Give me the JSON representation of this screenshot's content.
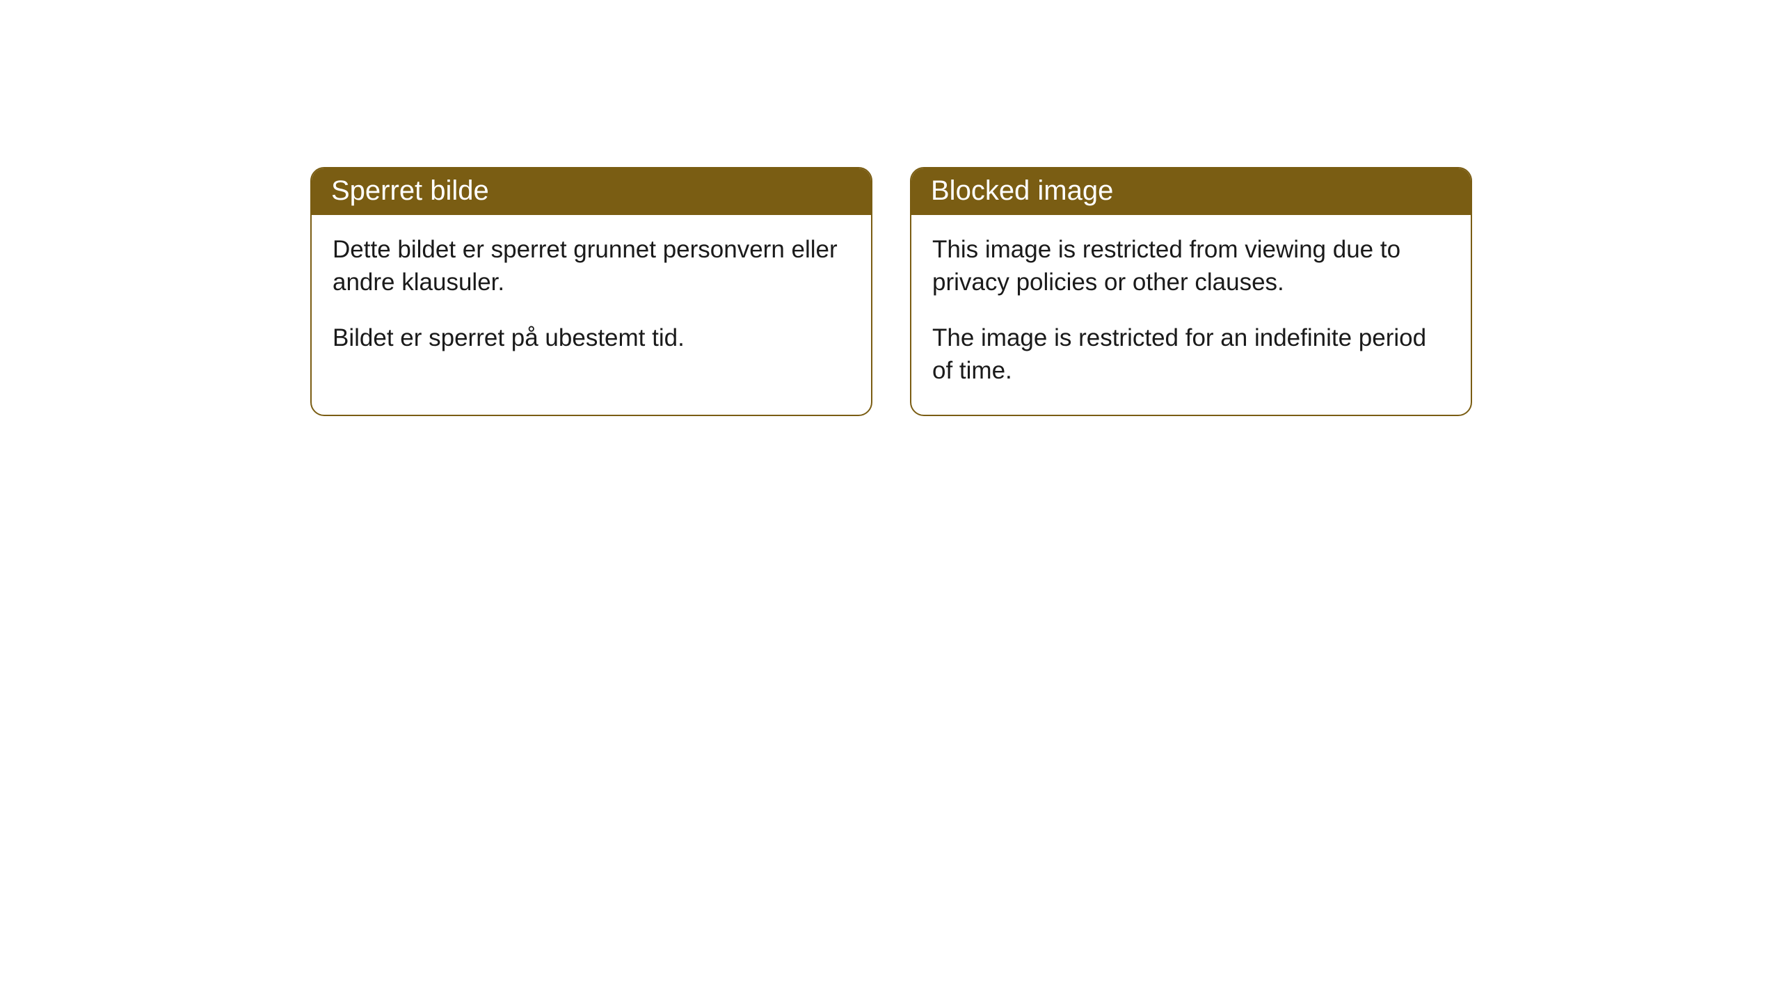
{
  "cards": [
    {
      "title": "Sperret bilde",
      "paragraph1": "Dette bildet er sperret grunnet personvern eller andre klausuler.",
      "paragraph2": "Bildet er sperret på ubestemt tid."
    },
    {
      "title": "Blocked image",
      "paragraph1": "This image is restricted from viewing due to privacy policies or other clauses.",
      "paragraph2": "The image is restricted for an indefinite period of time."
    }
  ],
  "styling": {
    "header_background": "#7a5d13",
    "header_text_color": "#ffffff",
    "body_background": "#ffffff",
    "body_text_color": "#1a1a1a",
    "border_color": "#7a5d13",
    "border_radius": 20,
    "title_fontsize": 40,
    "body_fontsize": 35
  }
}
